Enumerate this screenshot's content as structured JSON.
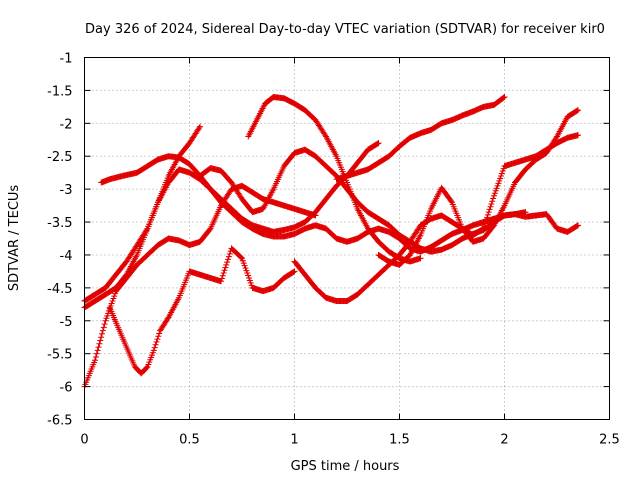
{
  "chart_data": {
    "type": "scatter",
    "title": "Day 326 of 2024, Sidereal Day-to-day VTEC variation (SDTVAR) for receiver kir0",
    "xlabel": "GPS time / hours",
    "ylabel": "SDTVAR / TECUs",
    "xlim": [
      0,
      2.5
    ],
    "ylim": [
      -6.5,
      -1
    ],
    "xticks": [
      0,
      0.5,
      1,
      1.5,
      2,
      2.5
    ],
    "xtick_labels": [
      "0",
      "0.5",
      "1",
      "1.5",
      "2",
      "2.5"
    ],
    "yticks": [
      -1,
      -1.5,
      -2,
      -2.5,
      -3,
      -3.5,
      -4,
      -4.5,
      -5,
      -5.5,
      -6,
      -6.5
    ],
    "ytick_labels": [
      "-1",
      "-1.5",
      "-2",
      "-2.5",
      "-3",
      "-3.5",
      "-4",
      "-4.5",
      "-5",
      "-5.5",
      "-6",
      "-6.5"
    ],
    "grid": true,
    "legend": "none",
    "marker": "plus",
    "color": "#e00000",
    "series": [
      {
        "x": [
          0.08,
          0.12,
          0.18,
          0.25,
          0.3,
          0.35,
          0.4,
          0.45,
          0.5,
          0.55,
          0.6,
          0.65,
          0.7,
          0.75,
          0.8,
          0.85,
          0.9,
          0.95,
          1.0,
          1.05,
          1.1,
          1.15,
          1.2,
          1.25,
          1.3,
          1.35,
          1.4,
          1.45,
          1.5,
          1.55,
          1.6,
          1.65,
          1.7,
          1.75,
          1.8,
          1.85,
          1.9,
          1.95,
          2.0,
          2.05,
          2.1
        ],
        "y": [
          -2.9,
          -2.85,
          -2.8,
          -2.75,
          -2.65,
          -2.55,
          -2.5,
          -2.52,
          -2.62,
          -2.8,
          -3.0,
          -3.2,
          -3.35,
          -3.5,
          -3.6,
          -3.68,
          -3.72,
          -3.72,
          -3.68,
          -3.6,
          -3.55,
          -3.6,
          -3.75,
          -3.8,
          -3.75,
          -3.65,
          -3.6,
          -3.65,
          -3.75,
          -3.9,
          -3.95,
          -3.88,
          -3.78,
          -3.68,
          -3.62,
          -3.55,
          -3.5,
          -3.45,
          -3.4,
          -3.38,
          -3.35
        ]
      },
      {
        "x": [
          0.0,
          0.05,
          0.1,
          0.15,
          0.2,
          0.25,
          0.3,
          0.35,
          0.4,
          0.45,
          0.5,
          0.55
        ],
        "y": [
          -4.8,
          -4.7,
          -4.6,
          -4.5,
          -4.3,
          -4.0,
          -3.6,
          -3.2,
          -2.8,
          -2.5,
          -2.3,
          -2.05
        ]
      },
      {
        "x": [
          0.55,
          0.6,
          0.65,
          0.7,
          0.75,
          0.8,
          0.85,
          0.9,
          0.95,
          1.0,
          1.05,
          1.1,
          1.15,
          1.2,
          1.25,
          1.3,
          1.35,
          1.4,
          1.45,
          1.5,
          1.55,
          1.6,
          1.65,
          1.7,
          1.75,
          1.8,
          1.85,
          1.9,
          1.95,
          2.0,
          2.05,
          2.1,
          2.15,
          2.2,
          2.25,
          2.3,
          2.35
        ],
        "y": [
          -2.8,
          -2.68,
          -2.72,
          -2.9,
          -3.15,
          -3.35,
          -3.3,
          -3.0,
          -2.65,
          -2.45,
          -2.4,
          -2.5,
          -2.65,
          -2.8,
          -3.0,
          -3.2,
          -3.35,
          -3.45,
          -3.55,
          -3.7,
          -3.8,
          -3.9,
          -3.95,
          -3.92,
          -3.85,
          -3.75,
          -3.68,
          -3.62,
          -3.5,
          -3.4,
          -3.38,
          -3.42,
          -3.4,
          -3.38,
          -3.6,
          -3.65,
          -3.55
        ]
      },
      {
        "x": [
          0.0,
          0.05,
          0.1,
          0.15,
          0.2,
          0.25,
          0.3,
          0.35,
          0.4,
          0.45,
          0.5,
          0.55,
          0.6,
          0.65,
          0.7,
          0.75,
          0.8,
          0.85,
          0.9,
          0.95,
          1.0,
          1.05,
          1.1
        ],
        "y": [
          -6.0,
          -5.6,
          -5.0,
          -4.55,
          -4.35,
          -4.15,
          -4.0,
          -3.85,
          -3.75,
          -3.78,
          -3.85,
          -3.8,
          -3.6,
          -3.25,
          -3.0,
          -2.95,
          -3.05,
          -3.15,
          -3.2,
          -3.25,
          -3.3,
          -3.35,
          -3.4
        ]
      },
      {
        "x": [
          0.0,
          0.1,
          0.2,
          0.3,
          0.35,
          0.4,
          0.45,
          0.5,
          0.55,
          0.6,
          0.65,
          0.7,
          0.75,
          0.8,
          0.85,
          0.9,
          0.95,
          1.0,
          1.05,
          1.1,
          1.15,
          1.2,
          1.25,
          1.3,
          1.35,
          1.4
        ],
        "y": [
          -4.7,
          -4.5,
          -4.1,
          -3.6,
          -3.2,
          -2.9,
          -2.7,
          -2.75,
          -2.85,
          -3.0,
          -3.15,
          -3.3,
          -3.45,
          -3.55,
          -3.6,
          -3.65,
          -3.62,
          -3.58,
          -3.5,
          -3.35,
          -3.15,
          -2.95,
          -2.8,
          -2.6,
          -2.4,
          -2.3
        ]
      },
      {
        "x": [
          0.12,
          0.16,
          0.2,
          0.24,
          0.27,
          0.3,
          0.33,
          0.36,
          0.4,
          0.45,
          0.5,
          0.55,
          0.6,
          0.65,
          0.7,
          0.75,
          0.8,
          0.85,
          0.9,
          0.95,
          1.0
        ],
        "y": [
          -4.8,
          -5.1,
          -5.4,
          -5.7,
          -5.8,
          -5.7,
          -5.45,
          -5.15,
          -4.95,
          -4.65,
          -4.25,
          -4.3,
          -4.35,
          -4.4,
          -3.9,
          -4.05,
          -4.5,
          -4.55,
          -4.5,
          -4.35,
          -4.25
        ]
      },
      {
        "x": [
          0.78,
          0.82,
          0.86,
          0.9,
          0.95,
          1.0,
          1.05,
          1.1,
          1.15,
          1.2,
          1.25,
          1.3,
          1.35,
          1.4,
          1.45,
          1.5,
          1.55,
          1.6
        ],
        "y": [
          -2.2,
          -1.95,
          -1.7,
          -1.6,
          -1.62,
          -1.7,
          -1.8,
          -1.95,
          -2.2,
          -2.5,
          -2.9,
          -3.3,
          -3.6,
          -3.8,
          -3.95,
          -4.05,
          -4.1,
          -4.05
        ]
      },
      {
        "x": [
          1.0,
          1.05,
          1.1,
          1.15,
          1.2,
          1.25,
          1.3,
          1.35,
          1.4,
          1.45,
          1.5,
          1.55,
          1.6,
          1.65,
          1.7,
          1.75,
          1.8,
          1.85,
          1.9,
          1.95,
          2.0,
          2.05,
          2.1,
          2.15,
          2.2,
          2.25,
          2.3,
          2.35
        ],
        "y": [
          -4.1,
          -4.3,
          -4.5,
          -4.65,
          -4.7,
          -4.7,
          -4.6,
          -4.45,
          -4.3,
          -4.15,
          -4.0,
          -3.8,
          -3.55,
          -3.45,
          -3.4,
          -3.5,
          -3.6,
          -3.7,
          -3.6,
          -3.1,
          -2.65,
          -2.6,
          -2.55,
          -2.5,
          -2.4,
          -2.3,
          -2.22,
          -2.18
        ]
      },
      {
        "x": [
          1.2,
          1.25,
          1.3,
          1.35,
          1.4,
          1.45,
          1.5,
          1.55,
          1.6,
          1.65,
          1.7,
          1.75,
          1.8,
          1.85,
          1.9,
          1.95,
          2.0
        ],
        "y": [
          -2.85,
          -2.8,
          -2.75,
          -2.7,
          -2.6,
          -2.5,
          -2.35,
          -2.22,
          -2.15,
          -2.1,
          -2.0,
          -1.95,
          -1.88,
          -1.82,
          -1.75,
          -1.72,
          -1.6
        ]
      },
      {
        "x": [
          1.4,
          1.45,
          1.5,
          1.55,
          1.6,
          1.65,
          1.7,
          1.75,
          1.8,
          1.85,
          1.9,
          1.95,
          2.0,
          2.05,
          2.1,
          2.15,
          2.2,
          2.25,
          2.3,
          2.35
        ],
        "y": [
          -4.0,
          -4.1,
          -4.15,
          -4.0,
          -3.7,
          -3.3,
          -2.98,
          -3.2,
          -3.6,
          -3.8,
          -3.75,
          -3.55,
          -3.25,
          -2.9,
          -2.7,
          -2.55,
          -2.45,
          -2.2,
          -1.9,
          -1.8
        ]
      }
    ]
  }
}
